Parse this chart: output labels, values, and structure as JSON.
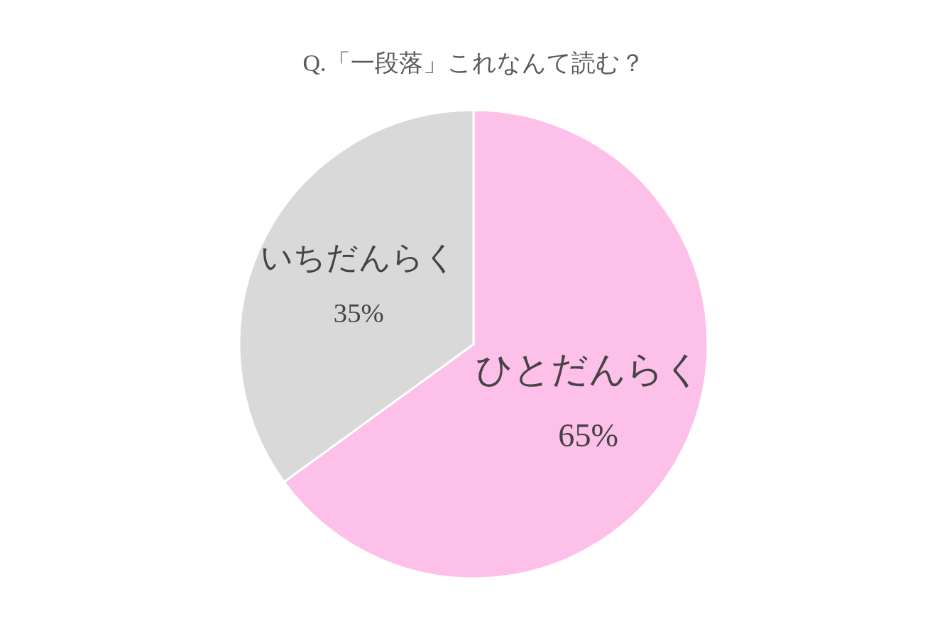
{
  "chart_data": {
    "type": "pie",
    "title": "Q.「一段落」これなんて読む？",
    "categories": [
      "ひとだんらく",
      "いちだんらく"
    ],
    "values": [
      65,
      35
    ],
    "value_labels": [
      "65%",
      "35%"
    ],
    "colors": [
      "#fdc0e9",
      "#d9d9d9"
    ]
  }
}
